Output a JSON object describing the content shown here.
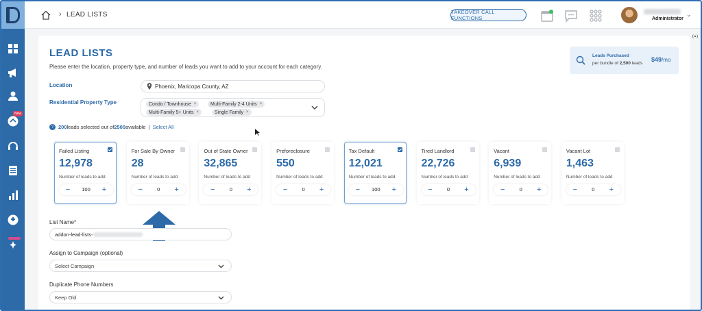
{
  "header": {
    "breadcrumb": "LEAD LISTS",
    "takeover_label": "TAKEOVER CALL FUNCTIONS",
    "user_role": "Administrator"
  },
  "sidebar": {
    "badge_new": "New",
    "items": [
      "dashboard",
      "campaigns",
      "contacts",
      "dialer",
      "support",
      "lists",
      "reports",
      "integrations",
      "ai-tools"
    ]
  },
  "page": {
    "title": "LEAD LISTS",
    "subtitle": "Please enter the location, property type, and number of leads you want to add to your account for each category."
  },
  "purchased": {
    "title": "Leads Purchased",
    "sub_prefix": "per bundle of ",
    "bundle": "2,500",
    "sub_suffix": " leads",
    "price": "$49",
    "price_unit": "/mo"
  },
  "location": {
    "label": "Location",
    "value": "Phoenix, Maricopa County, AZ"
  },
  "property": {
    "label": "Residential Property Type",
    "chips": [
      "Condo / Townhouse",
      "Multi-Family 2-4 Units",
      "Multi-Family 5+ Units",
      "Single Family"
    ],
    "chip_remove": "×"
  },
  "selection": {
    "selected": "200",
    "text_mid": " leads selected out of ",
    "available": "2500",
    "text_end": " available",
    "separator": "|",
    "select_all": "Select All"
  },
  "tiles": [
    {
      "name": "Failed Listing",
      "count": "12,978",
      "hint": "Number of leads to add",
      "qty": "100",
      "checked": true
    },
    {
      "name": "For Sale By Owner",
      "count": "28",
      "hint": "Number of leads to add",
      "qty": "0",
      "checked": false
    },
    {
      "name": "Out of State Owner",
      "count": "32,865",
      "hint": "Number of leads to add",
      "qty": "0",
      "checked": false
    },
    {
      "name": "Preforeclosure",
      "count": "550",
      "hint": "Number of leads to add",
      "qty": "0",
      "checked": false
    },
    {
      "name": "Tax Default",
      "count": "12,021",
      "hint": "Number of leads to add",
      "qty": "100",
      "checked": true
    },
    {
      "name": "Tired Landlord",
      "count": "22,726",
      "hint": "Number of leads to add",
      "qty": "0",
      "checked": false
    },
    {
      "name": "Vacant",
      "count": "6,939",
      "hint": "Number of leads to add",
      "qty": "0",
      "checked": false
    },
    {
      "name": "Vacant Lot",
      "count": "1,463",
      "hint": "Number of leads to add",
      "qty": "0",
      "checked": false
    }
  ],
  "stepper": {
    "minus": "−",
    "plus": "+"
  },
  "form": {
    "list_name_label": "List Name*",
    "list_name_value": "addon-lead-lists-",
    "campaign_label": "Assign to Campaign (optional)",
    "campaign_placeholder": "Select Campaign",
    "duplicate_label": "Duplicate Phone Numbers",
    "duplicate_value": "Keep Old"
  },
  "colors": {
    "brand": "#2c6aa8",
    "sidebar_bg": "#2c6aa8",
    "badge_new": "#e0405a",
    "annotation_arrow": "#2c6aa8"
  }
}
